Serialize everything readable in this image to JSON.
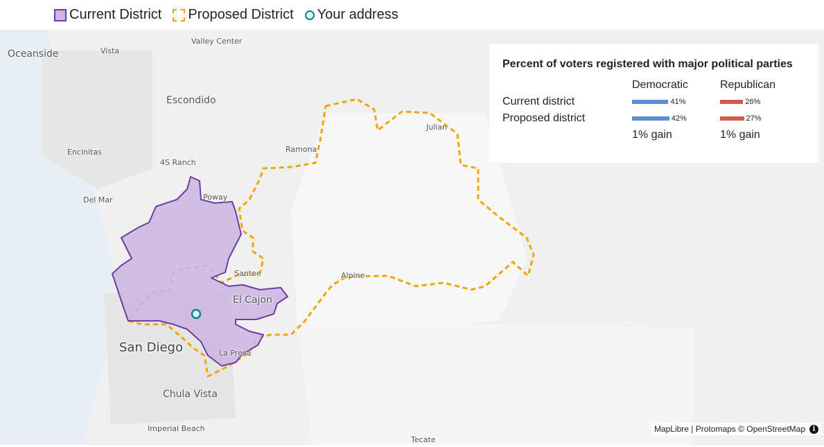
{
  "legend": {
    "current": "Current District",
    "proposed": "Proposed District",
    "address": "Your address"
  },
  "colors": {
    "current_fill": "#cdb4e3",
    "current_stroke": "#6b3fa0",
    "proposed_stroke": "#f0a500",
    "address_stroke": "#00838f",
    "democratic": "#5b8fd1",
    "republican": "#cd5c4e",
    "ocean": "#e8eef5",
    "land": "#f0f0f0"
  },
  "places": {
    "oceanside": "Oceanside",
    "vista": "Vista",
    "valley_center": "Valley Center",
    "escondido": "Escondido",
    "encinitas": "Encinitas",
    "ramona": "Ramona",
    "julian": "Julian",
    "four_s_ranch": "4S Ranch",
    "del_mar": "Del Mar",
    "poway": "Poway",
    "santee": "Santee",
    "alpine": "Alpine",
    "el_cajon": "El Cajon",
    "san_diego": "San Diego",
    "la_presa": "La Presa",
    "chula_vista": "Chula Vista",
    "imperial_beach": "Imperial Beach",
    "tecate": "Tecate"
  },
  "panel": {
    "title": "Percent of voters registered with major political parties",
    "col_dem": "Democratic",
    "col_rep": "Republican",
    "rows": [
      {
        "label": "Current district",
        "dem_label": "41%",
        "rep_label": "26%",
        "dem": 41,
        "rep": 26
      },
      {
        "label": "Proposed district",
        "dem_label": "42%",
        "rep_label": "27%",
        "dem": 42,
        "rep": 27
      }
    ],
    "dem_gain": "1% gain",
    "rep_gain": "1% gain"
  },
  "attribution": {
    "text": "MapLibre | Protomaps © OpenStreetMap",
    "icon": "info-icon"
  }
}
